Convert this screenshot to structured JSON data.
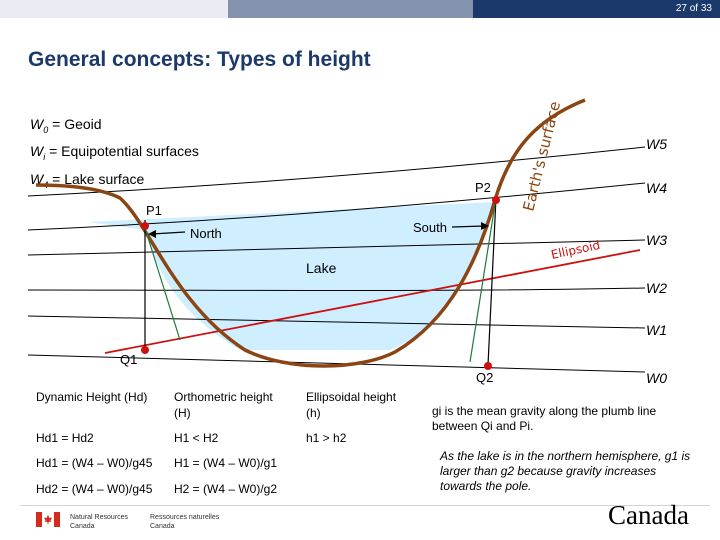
{
  "header": {
    "page_number": "27 of 33"
  },
  "title": "General concepts: Types of height",
  "legend": {
    "w0_sym": "W",
    "w0_sub": "0",
    "w0_text": " = Geoid",
    "wi_sym": "W",
    "wi_sub": "i",
    "wi_text": " = Equipotential surfaces",
    "w4_sym": "W",
    "w4_sub": "4",
    "w4_text": " = Lake surface"
  },
  "diagram": {
    "earth_surface_label": "Earth's surface",
    "ellipsoid_label": "Ellipsoid",
    "north_label": "North",
    "south_label": "South",
    "lake_label": "Lake",
    "p1_label": "P1",
    "p2_label": "P2",
    "q1_label": "Q1",
    "q2_label": "Q2",
    "potential_labels": [
      "W5",
      "W4",
      "W3",
      "W2",
      "W1",
      "W0"
    ]
  },
  "table": {
    "headers": [
      "Dynamic Height (Hd)",
      "Orthometric height (H)",
      "Ellipsoidal height (h)"
    ],
    "rows": [
      [
        "Hd1 = Hd2",
        "H1 < H2",
        "h1 > h2"
      ],
      [
        "Hd1 = (W4 – W0)/g45",
        "H1 = (W4 – W0)/g1",
        ""
      ],
      [
        "Hd2 = (W4 – W0)/g45",
        "H2 = (W4 – W0)/g2",
        ""
      ]
    ]
  },
  "notes": {
    "gravity": "gi is the mean gravity along the plumb line between Qi and Pi.",
    "hemisphere": "As the lake is in the northern hemisphere, g1 is larger than g2 because gravity increases towards the pole."
  },
  "footer": {
    "agency_en_1": "Natural Resources",
    "agency_en_2": "Canada",
    "agency_fr_1": "Ressources naturelles",
    "agency_fr_2": "Canada",
    "wordmark": "Canada"
  },
  "colors": {
    "brand_navy": "#1b3a6b",
    "earth_brown": "#8b4513",
    "lake_blue": "#cfeeff",
    "ellipsoid_red": "#cc1111",
    "plumb_green": "#1f7a3a"
  }
}
